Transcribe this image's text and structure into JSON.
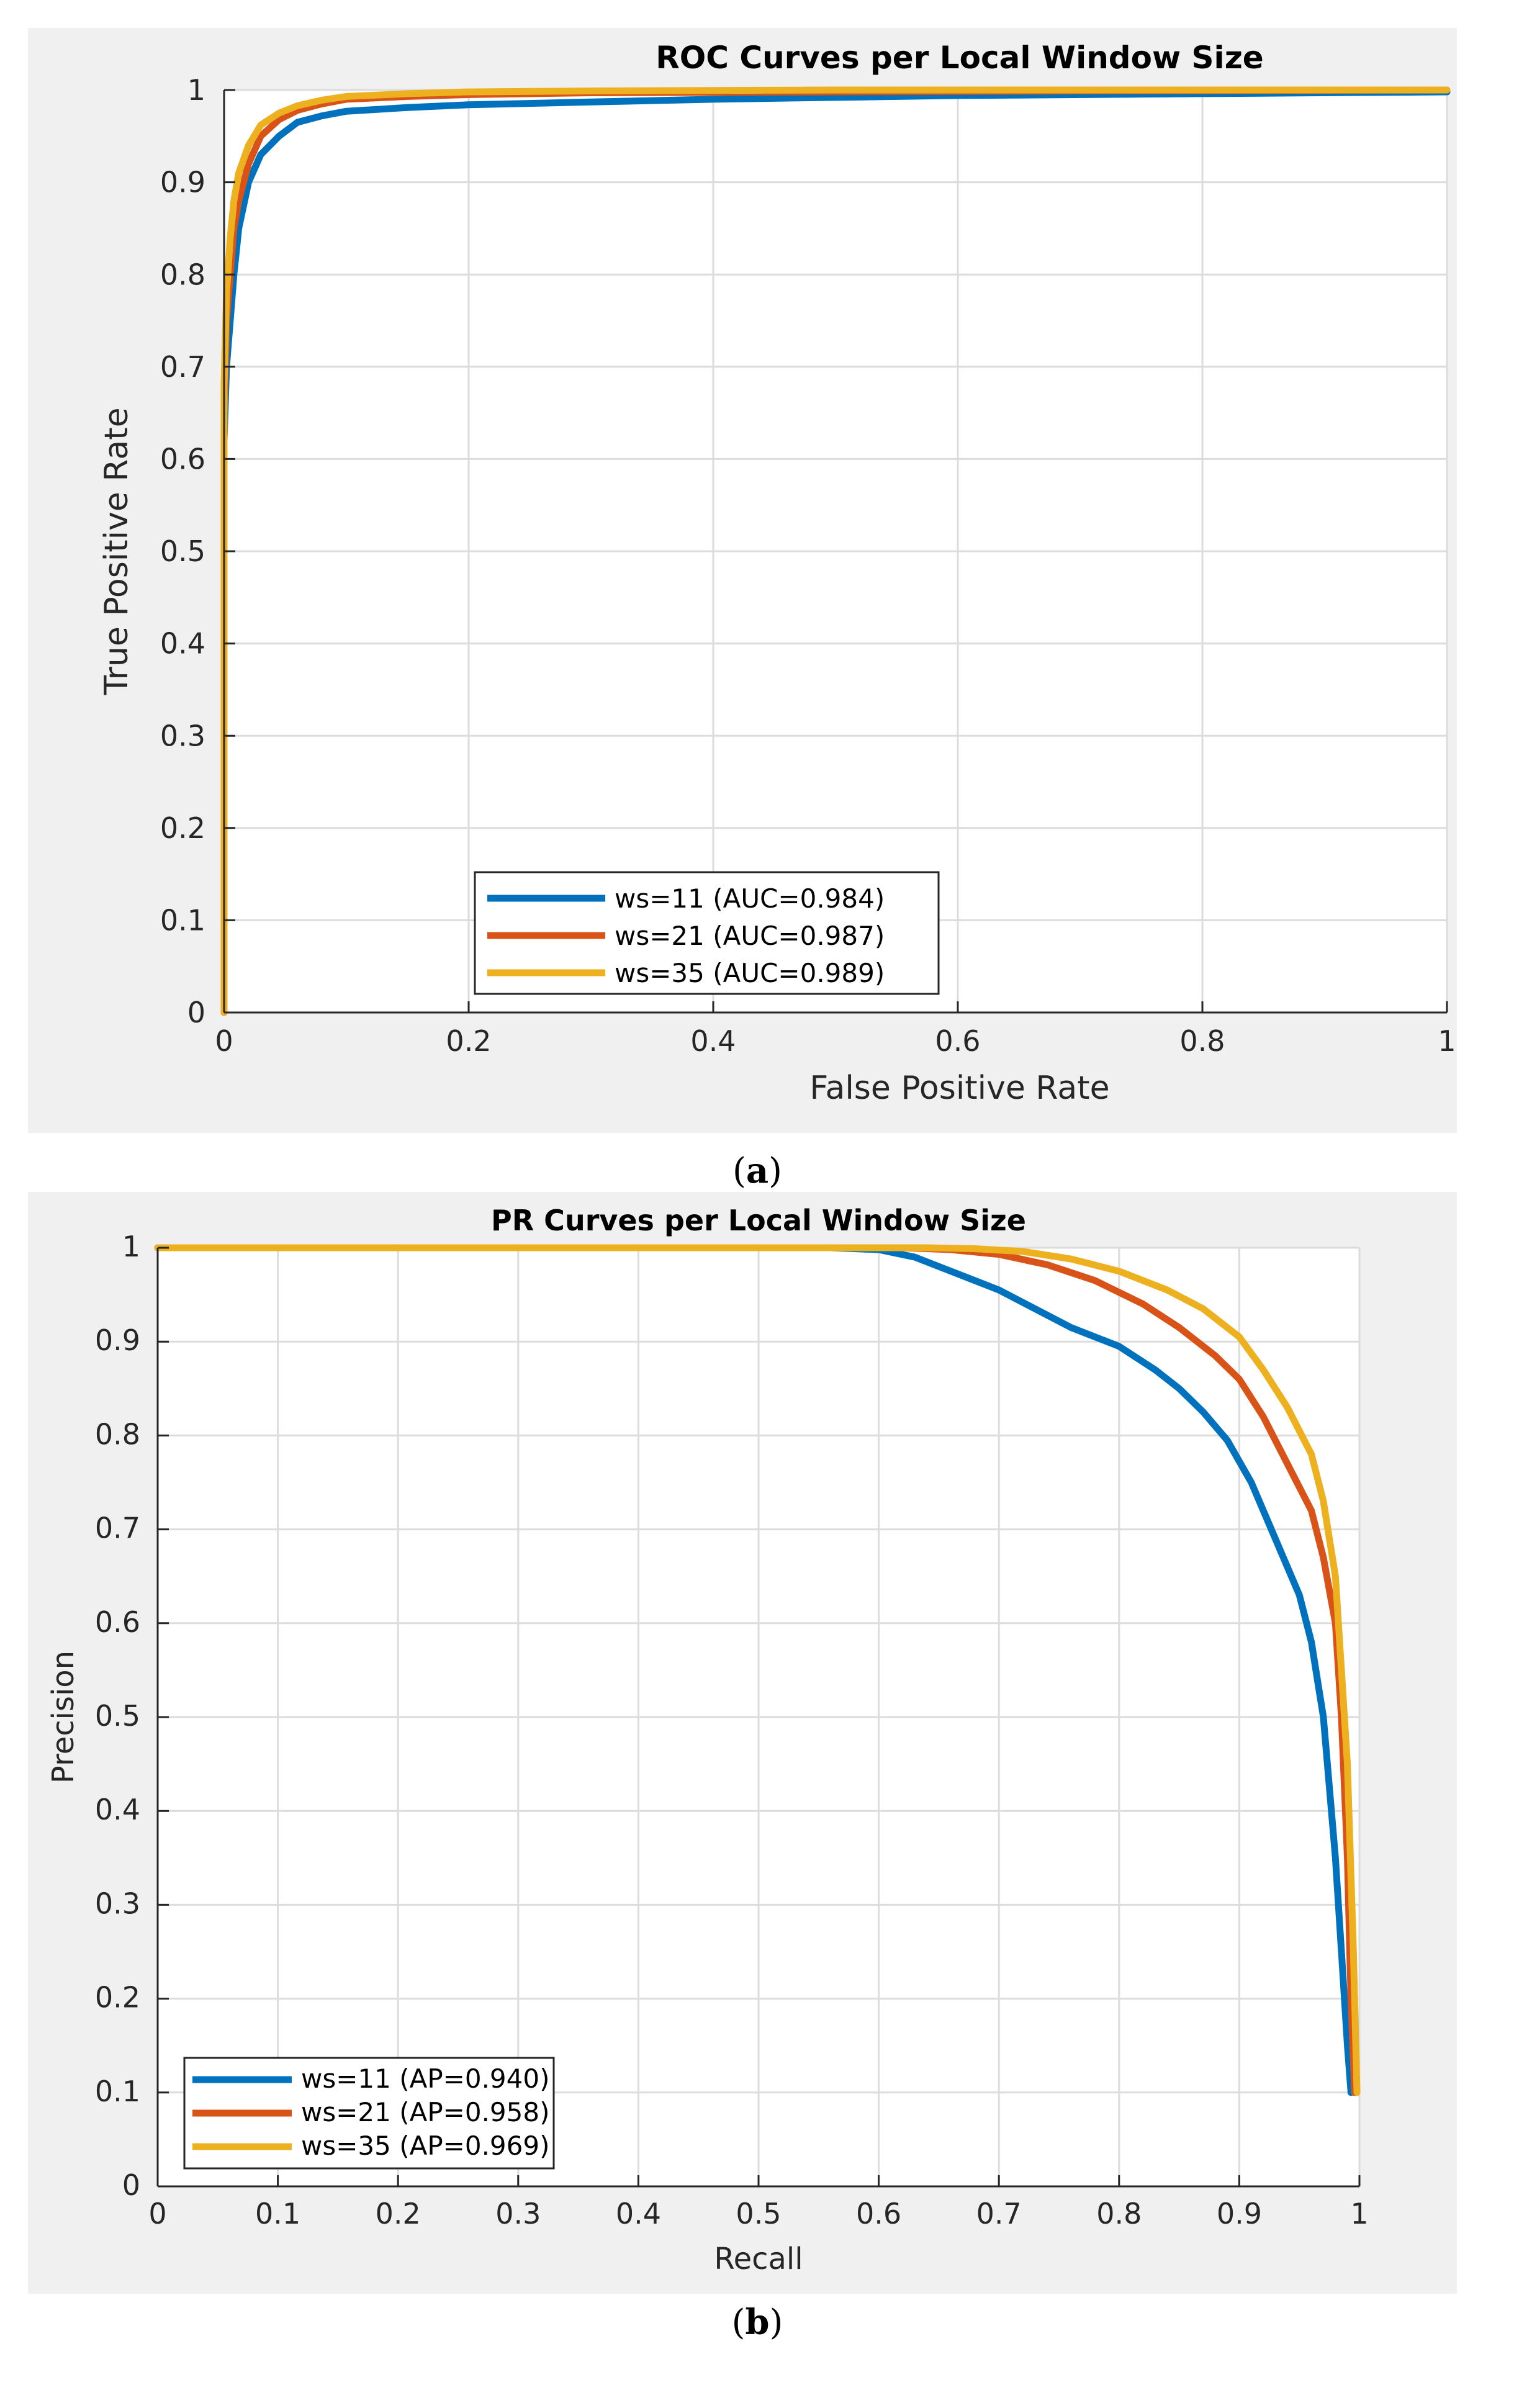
{
  "chart_data": [
    {
      "type": "line",
      "title": "ROC Curves per Local Window Size",
      "xlabel": "False Positive Rate",
      "ylabel": "True Positive Rate",
      "xlim": [
        0,
        1
      ],
      "ylim": [
        0,
        1
      ],
      "xticks": [
        "0",
        "0.2",
        "0.4",
        "0.6",
        "0.8",
        "1"
      ],
      "yticks": [
        "0",
        "0.1",
        "0.2",
        "0.3",
        "0.4",
        "0.5",
        "0.6",
        "0.7",
        "0.8",
        "0.9",
        "1"
      ],
      "grid": true,
      "legend_position": "bottom-center",
      "sub_label": "a",
      "series": [
        {
          "name": "ws=11 (AUC=0.984)",
          "color": "#0072BD",
          "x": [
            0,
            0,
            0.002,
            0.005,
            0.008,
            0.012,
            0.02,
            0.03,
            0.045,
            0.06,
            0.08,
            0.1,
            0.15,
            0.2,
            0.3,
            0.4,
            0.5,
            0.6,
            0.8,
            1.0
          ],
          "y": [
            0,
            0.62,
            0.7,
            0.75,
            0.8,
            0.85,
            0.9,
            0.93,
            0.95,
            0.965,
            0.972,
            0.977,
            0.981,
            0.984,
            0.987,
            0.99,
            0.992,
            0.994,
            0.996,
            0.998
          ]
        },
        {
          "name": "ws=21 (AUC=0.987)",
          "color": "#D95319",
          "x": [
            0,
            0,
            0.002,
            0.005,
            0.008,
            0.012,
            0.02,
            0.03,
            0.045,
            0.06,
            0.08,
            0.1,
            0.15,
            0.2,
            0.3,
            0.5,
            0.7,
            1.0
          ],
          "y": [
            0,
            0.65,
            0.75,
            0.8,
            0.85,
            0.88,
            0.92,
            0.95,
            0.968,
            0.978,
            0.985,
            0.99,
            0.993,
            0.995,
            0.997,
            0.998,
            0.999,
            1.0
          ]
        },
        {
          "name": "ws=35 (AUC=0.989)",
          "color": "#EDB120",
          "x": [
            0,
            0,
            0.002,
            0.005,
            0.008,
            0.012,
            0.02,
            0.03,
            0.045,
            0.06,
            0.08,
            0.1,
            0.15,
            0.2,
            0.3,
            0.5,
            1.0
          ],
          "y": [
            0,
            0.68,
            0.78,
            0.84,
            0.88,
            0.91,
            0.94,
            0.962,
            0.975,
            0.983,
            0.989,
            0.993,
            0.996,
            0.998,
            0.999,
            1.0,
            1.0
          ]
        }
      ]
    },
    {
      "type": "line",
      "title": "PR Curves per Local Window Size",
      "xlabel": "Recall",
      "ylabel": "Precision",
      "xlim": [
        0,
        1
      ],
      "ylim": [
        0,
        1
      ],
      "xticks": [
        "0",
        "0.1",
        "0.2",
        "0.3",
        "0.4",
        "0.5",
        "0.6",
        "0.7",
        "0.8",
        "0.9",
        "1"
      ],
      "yticks": [
        "0",
        "0.1",
        "0.2",
        "0.3",
        "0.4",
        "0.5",
        "0.6",
        "0.7",
        "0.8",
        "0.9",
        "1"
      ],
      "grid": true,
      "legend_position": "bottom-left",
      "sub_label": "b",
      "series": [
        {
          "name": "ws=11 (AP=0.940)",
          "color": "#0072BD",
          "x": [
            0,
            0.56,
            0.6,
            0.63,
            0.66,
            0.7,
            0.73,
            0.76,
            0.8,
            0.83,
            0.85,
            0.87,
            0.89,
            0.91,
            0.93,
            0.95,
            0.96,
            0.97,
            0.98,
            0.985,
            0.99,
            0.993
          ],
          "y": [
            1.0,
            1.0,
            0.998,
            0.99,
            0.975,
            0.955,
            0.935,
            0.915,
            0.895,
            0.87,
            0.85,
            0.825,
            0.795,
            0.75,
            0.69,
            0.63,
            0.58,
            0.5,
            0.35,
            0.25,
            0.15,
            0.1
          ]
        },
        {
          "name": "ws=21 (AP=0.958)",
          "color": "#D95319",
          "x": [
            0,
            0.62,
            0.66,
            0.7,
            0.74,
            0.78,
            0.82,
            0.85,
            0.88,
            0.9,
            0.92,
            0.94,
            0.96,
            0.97,
            0.98,
            0.985,
            0.99,
            0.993,
            0.996
          ],
          "y": [
            1.0,
            1.0,
            0.998,
            0.993,
            0.982,
            0.965,
            0.94,
            0.915,
            0.885,
            0.86,
            0.82,
            0.77,
            0.72,
            0.67,
            0.6,
            0.5,
            0.35,
            0.2,
            0.1
          ]
        },
        {
          "name": "ws=35 (AP=0.969)",
          "color": "#EDB120",
          "x": [
            0,
            0.64,
            0.68,
            0.72,
            0.76,
            0.8,
            0.84,
            0.87,
            0.9,
            0.92,
            0.94,
            0.96,
            0.97,
            0.98,
            0.985,
            0.99,
            0.995,
            0.998
          ],
          "y": [
            1.0,
            1.0,
            0.999,
            0.996,
            0.988,
            0.975,
            0.955,
            0.935,
            0.905,
            0.87,
            0.83,
            0.78,
            0.73,
            0.65,
            0.55,
            0.45,
            0.25,
            0.1
          ]
        }
      ]
    }
  ]
}
